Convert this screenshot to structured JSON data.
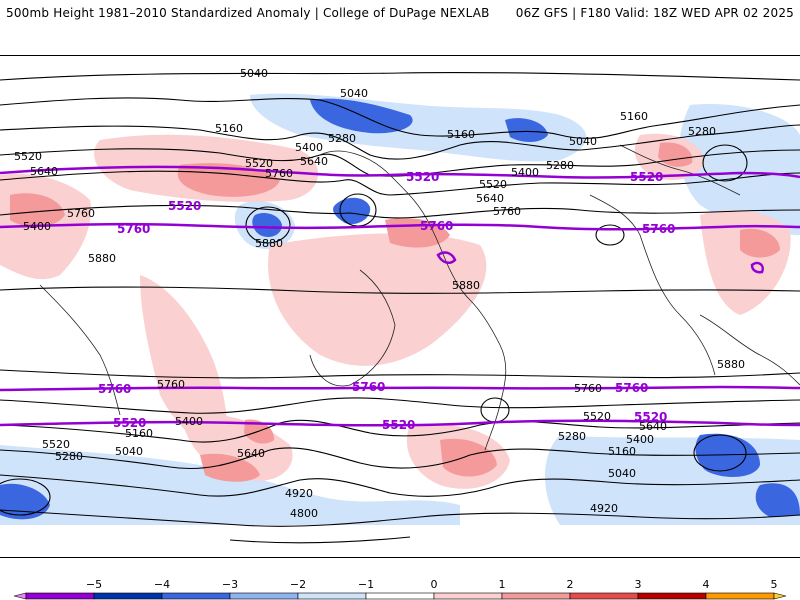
{
  "header": {
    "title_left": "500mb Height 1981–2010 Standardized Anomaly | College of DuPage NEXLAB",
    "title_right": "06Z GFS | F180 Valid: 18Z WED APR 02 2025"
  },
  "contour_labels": {
    "black": [
      "5040",
      "5040",
      "5160",
      "5280",
      "5400",
      "5520",
      "5640",
      "5760",
      "5880",
      "4920",
      "4800",
      "5160",
      "5280",
      "5400",
      "5520",
      "5640",
      "5760",
      "5880",
      "5040",
      "5160",
      "5280",
      "5400",
      "5520",
      "5640",
      "5760",
      "5880",
      "5040",
      "5160",
      "5520",
      "5640",
      "5280",
      "5400",
      "5760",
      "4920",
      "5040",
      "5160",
      "5280",
      "5400",
      "5520",
      "5640",
      "5760",
      "5880"
    ],
    "purple": [
      "5520",
      "5520",
      "5520",
      "5760",
      "5760",
      "5760",
      "5760",
      "5760",
      "5760",
      "5520",
      "5520",
      "5520"
    ]
  },
  "colorbar": {
    "ticks": [
      "−5",
      "−4",
      "−3",
      "−2",
      "−1",
      "0",
      "1",
      "2",
      "3",
      "4",
      "5"
    ],
    "colors": [
      "#ee82ee",
      "#9400d3",
      "#0033aa",
      "#3a66e0",
      "#8fb3f0",
      "#cfe3fb",
      "#ffffff",
      "#fbd0d0",
      "#f49a9a",
      "#e84a4a",
      "#b80000",
      "#ff9900",
      "#ffcc33"
    ]
  }
}
